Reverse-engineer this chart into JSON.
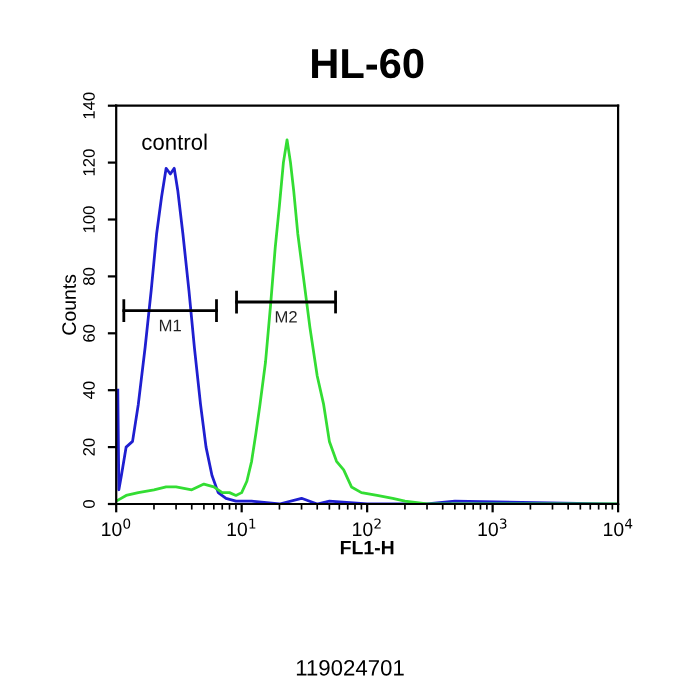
{
  "chart_data": {
    "type": "line",
    "title": "HL-60",
    "xlabel": "FL1-H",
    "ylabel": "Counts",
    "log": "x",
    "xlim": [
      1,
      10000
    ],
    "ylim": [
      0,
      140
    ],
    "xticks": [
      {
        "value": 1,
        "label": "10$^{0}$"
      },
      {
        "value": 10,
        "label": "10$^{1}$"
      },
      {
        "value": 100,
        "label": "10$^{2}$"
      },
      {
        "value": 1000,
        "label": "10$^{3}$"
      },
      {
        "value": 10000,
        "label": "10$^{4}$"
      }
    ],
    "yticks": [
      0,
      20,
      40,
      60,
      80,
      100,
      120,
      140
    ],
    "grid": false,
    "legend": false,
    "series": [
      {
        "color": "#1f1fd0",
        "x": [
          1.03,
          1.05,
          1.1,
          1.2,
          1.35,
          1.5,
          1.7,
          1.9,
          2.1,
          2.3,
          2.5,
          2.7,
          2.9,
          3.1,
          3.4,
          3.8,
          4.2,
          4.7,
          5.2,
          5.8,
          6.5,
          7.5,
          9,
          12,
          20,
          30,
          40,
          50,
          100,
          300,
          500,
          10000
        ],
        "values": [
          40,
          5,
          10,
          20,
          22,
          35,
          55,
          75,
          95,
          108,
          118,
          116,
          118,
          110,
          95,
          75,
          55,
          35,
          20,
          10,
          4,
          2,
          1,
          1,
          0,
          2,
          0,
          1,
          0,
          0,
          1,
          0
        ]
      },
      {
        "color": "#33dd33",
        "x": [
          1.0,
          1.2,
          1.5,
          2,
          2.5,
          3,
          4,
          5,
          6,
          7,
          8,
          9,
          10,
          11,
          12,
          13,
          14,
          15.5,
          17,
          18.5,
          20,
          21.5,
          23,
          24.5,
          26,
          28,
          31,
          35,
          40,
          45,
          50,
          57,
          65,
          75,
          90,
          120,
          160,
          200,
          300,
          1000,
          10000
        ],
        "values": [
          1,
          3,
          4,
          5,
          6,
          6,
          5,
          7,
          6,
          4,
          4,
          3,
          4,
          8,
          15,
          25,
          35,
          50,
          70,
          90,
          105,
          120,
          128,
          120,
          110,
          95,
          80,
          62,
          45,
          35,
          22,
          15,
          12,
          6,
          4,
          3,
          2,
          1,
          0,
          0,
          0
        ]
      },
      {
        "name": "M1",
        "color": "#000000",
        "x": [
          1.15,
          6.3
        ],
        "values": [
          68,
          68
        ],
        "errors": [
          4,
          4
        ]
      },
      {
        "name": "M2",
        "color": "#000000",
        "x": [
          9.1,
          56
        ],
        "values": [
          71,
          71
        ],
        "errors": [
          4,
          4
        ]
      }
    ],
    "annotations": [
      "control",
      "119024701"
    ]
  }
}
